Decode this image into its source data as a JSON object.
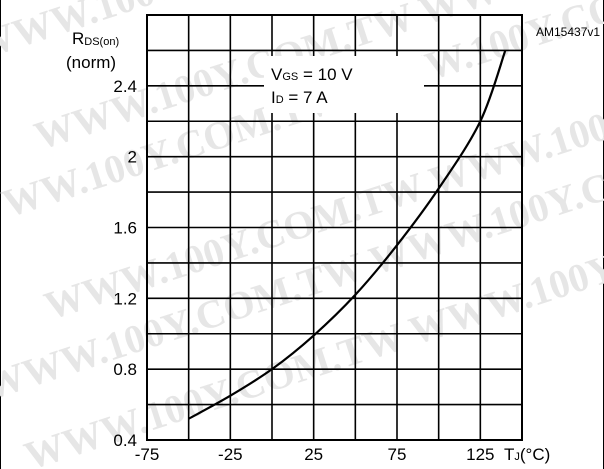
{
  "chart_data": {
    "type": "line",
    "title": "",
    "doc_id": "AM15437v1",
    "ylabel": {
      "main": "R",
      "sub": "DS(on)",
      "line2": "(norm)"
    },
    "xlabel": {
      "main": "T",
      "sub": "J",
      "suffix": "(°C)"
    },
    "annotation": [
      {
        "main": "V",
        "sub": "GS",
        "rest": " = 10 V"
      },
      {
        "main": "I",
        "sub": "D",
        "rest": " = 7 A"
      }
    ],
    "xlim": [
      -75,
      150
    ],
    "ylim": [
      0.4,
      2.8
    ],
    "x_ticks": [
      -75,
      -25,
      25,
      75,
      125
    ],
    "x_tick_labels": [
      "-75",
      "-25",
      "25",
      "75",
      "125"
    ],
    "y_ticks": [
      0.4,
      0.8,
      1.2,
      1.6,
      2.0,
      2.4
    ],
    "y_tick_labels": [
      "0.4",
      "0.8",
      "1.2",
      "1.6",
      "2",
      "2.4"
    ],
    "x_grid": [
      -75,
      -50,
      -25,
      0,
      25,
      50,
      75,
      100,
      125,
      150
    ],
    "y_grid": [
      0.4,
      0.6,
      0.8,
      1.0,
      1.2,
      1.4,
      1.6,
      1.8,
      2.0,
      2.2,
      2.4,
      2.6,
      2.8
    ],
    "grid": true,
    "series": [
      {
        "x": [
          -50,
          -25,
          0,
          25,
          50,
          75,
          100,
          125,
          140
        ],
        "y": [
          0.52,
          0.65,
          0.8,
          0.99,
          1.22,
          1.5,
          1.82,
          2.2,
          2.6
        ]
      }
    ],
    "watermark": "WWW.100Y.COM.TW"
  }
}
